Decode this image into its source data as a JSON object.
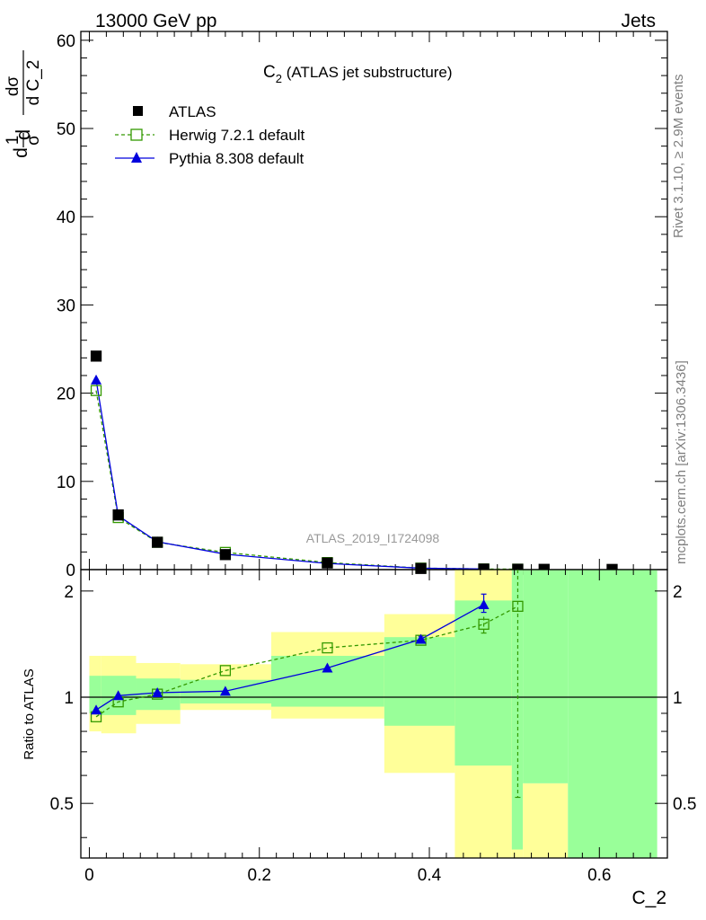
{
  "header": {
    "left": "13000 GeV pp",
    "right": "Jets"
  },
  "side_text": {
    "rivet": "Rivet 3.1.10, ≥ 2.9M events",
    "mcplots": "mcplots.cern.ch [arXiv:1306.3436]"
  },
  "watermark": "ATLAS_2019_I1724098",
  "colors": {
    "data": "#000000",
    "herwig": "#339900",
    "pythia": "#0000dd",
    "band_yellow": "#ffff99",
    "band_green": "#99ff99"
  },
  "chart_data": [
    {
      "type": "line",
      "title": "C_2 (ATLAS jet substructure)",
      "title_parts": {
        "main": "C",
        "sub": "2",
        "rest": " (ATLAS jet substructure)"
      },
      "ylabel": "1/σ dσ/d C_2",
      "ylabel_parts": {
        "one": "1",
        "sigma": "σ",
        "d": "d",
        "dsigma": "dσ",
        "dc2": "d C_2"
      },
      "xlim": [
        -0.01,
        0.68
      ],
      "ylim": [
        0,
        61
      ],
      "y_ticks": [
        0,
        10,
        20,
        30,
        40,
        50,
        60
      ],
      "legend": [
        {
          "name": "ATLAS",
          "marker": "filled-square"
        },
        {
          "name": "Herwig 7.2.1 default",
          "marker": "open-square-dashed"
        },
        {
          "name": "Pythia 8.308 default",
          "marker": "filled-triangle"
        }
      ],
      "series": [
        {
          "name": "ATLAS",
          "x": [
            0.008,
            0.034,
            0.08,
            0.16,
            0.28,
            0.39,
            0.464,
            0.504,
            0.535,
            0.615
          ],
          "values": [
            24.2,
            6.2,
            3.1,
            1.7,
            0.75,
            0.13,
            0.06,
            0.04,
            0.03,
            0.02
          ]
        },
        {
          "name": "Herwig 7.2.1 default",
          "x": [
            0.008,
            0.034,
            0.08,
            0.16,
            0.28,
            0.39,
            0.464,
            0.504
          ],
          "values": [
            20.3,
            5.9,
            3.1,
            1.95,
            0.8,
            0.17,
            0.07,
            0.05
          ]
        },
        {
          "name": "Pythia 8.308 default",
          "x": [
            0.008,
            0.034,
            0.08,
            0.16,
            0.28,
            0.39,
            0.464
          ],
          "values": [
            21.5,
            6.1,
            3.15,
            1.75,
            0.7,
            0.16,
            0.08
          ]
        }
      ]
    },
    {
      "type": "line",
      "ylabel": "Ratio to ATLAS",
      "xlabel": "C_2",
      "xlim": [
        -0.01,
        0.68
      ],
      "x_ticks": [
        0,
        0.2,
        0.4,
        0.6
      ],
      "x_tick_labels": [
        "0",
        "0.2",
        "0.4",
        "0.6"
      ],
      "ylim": [
        0.35,
        2.3
      ],
      "y_scale": "log",
      "y_ticks": [
        0.5,
        1,
        2
      ],
      "y_tick_labels": [
        "0.5",
        "1",
        "2"
      ],
      "bands": [
        {
          "x": [
            0.0,
            0.014
          ],
          "yellow": [
            0.8,
            1.31
          ],
          "green": [
            0.9,
            1.15
          ]
        },
        {
          "x": [
            0.014,
            0.055
          ],
          "yellow": [
            0.79,
            1.31
          ],
          "green": [
            0.89,
            1.15
          ]
        },
        {
          "x": [
            0.055,
            0.107
          ],
          "yellow": [
            0.84,
            1.25
          ],
          "green": [
            0.92,
            1.13
          ]
        },
        {
          "x": [
            0.107,
            0.214
          ],
          "yellow": [
            0.92,
            1.24
          ],
          "green": [
            0.96,
            1.12
          ]
        },
        {
          "x": [
            0.214,
            0.347
          ],
          "yellow": [
            0.87,
            1.53
          ],
          "green": [
            0.94,
            1.31
          ]
        },
        {
          "x": [
            0.347,
            0.43
          ],
          "yellow": [
            0.61,
            1.72
          ],
          "green": [
            0.83,
            1.48
          ]
        },
        {
          "x": [
            0.43,
            0.497
          ],
          "yellow": [
            0.35,
            2.3
          ],
          "green": [
            0.64,
            1.88
          ]
        },
        {
          "x": [
            0.497,
            0.51
          ],
          "yellow": [
            0.35,
            2.3
          ],
          "green": [
            0.37,
            2.3
          ]
        },
        {
          "x": [
            0.51,
            0.563
          ],
          "yellow": [
            0.35,
            0.57
          ],
          "green": [
            0.57,
            2.3
          ]
        },
        {
          "x": [
            0.563,
            0.668
          ],
          "yellow": [
            0.35,
            0.35
          ],
          "green": [
            0.35,
            2.3
          ]
        }
      ],
      "series": [
        {
          "name": "Herwig 7.2.1 default",
          "x": [
            0.008,
            0.034,
            0.08,
            0.16,
            0.28,
            0.39,
            0.464,
            0.504
          ],
          "values": [
            0.88,
            0.97,
            1.02,
            1.19,
            1.38,
            1.45,
            1.61,
            1.81
          ],
          "err_lo": [
            0,
            0,
            0,
            0,
            0,
            0,
            0.09,
            1.29
          ],
          "err_hi": [
            0,
            0,
            0,
            0,
            0,
            0,
            0.08,
            0
          ]
        },
        {
          "name": "Pythia 8.308 default",
          "x": [
            0.008,
            0.034,
            0.08,
            0.16,
            0.28,
            0.39,
            0.464
          ],
          "values": [
            0.92,
            1.01,
            1.03,
            1.04,
            1.21,
            1.46,
            1.83
          ],
          "err_lo": [
            0,
            0,
            0,
            0,
            0,
            0.03,
            0.09
          ],
          "err_hi": [
            0,
            0,
            0,
            0,
            0,
            0.03,
            0.13
          ]
        }
      ]
    }
  ]
}
